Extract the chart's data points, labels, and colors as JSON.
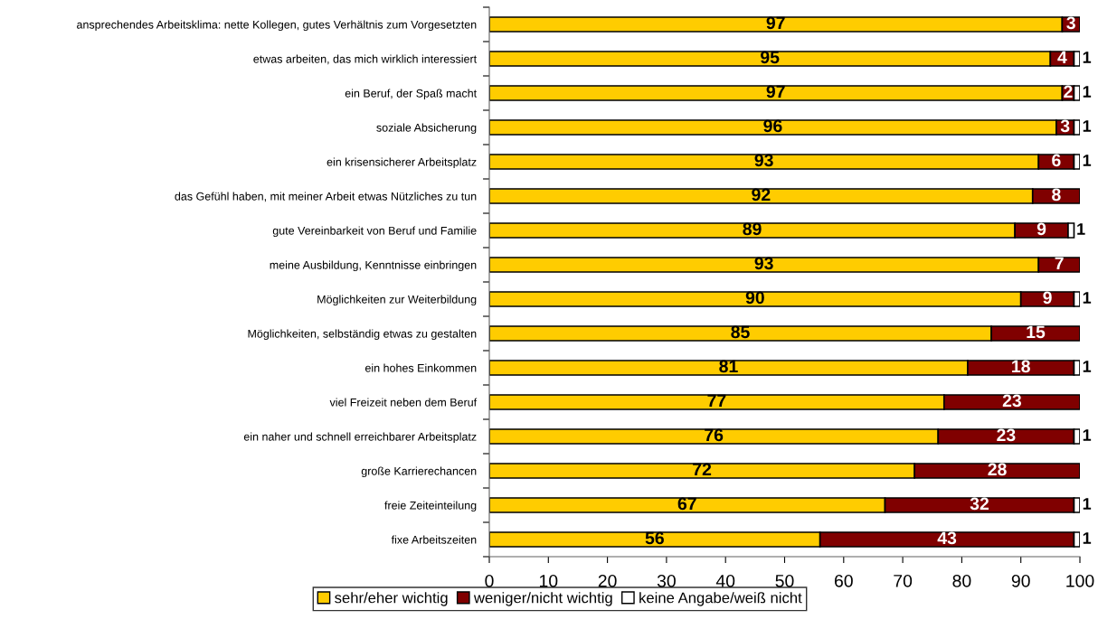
{
  "chart_data": {
    "type": "bar",
    "orientation": "horizontal",
    "stacked": true,
    "categories": [
      "ansprechendes Arbeitsklima: nette Kollegen, gutes Verhältnis zum Vorgesetzten",
      "etwas arbeiten, das mich wirklich interessiert",
      "ein Beruf, der Spaß macht",
      "soziale Absicherung",
      "ein krisensicherer Arbeitsplatz",
      "das Gefühl haben, mit meiner Arbeit etwas Nützliches zu tun",
      "gute Vereinbarkeit von Beruf und Familie",
      "meine Ausbildung, Kenntnisse einbringen",
      "Möglichkeiten zur Weiterbildung",
      "Möglichkeiten, selbständig etwas zu gestalten",
      "ein hohes Einkommen",
      "viel Freizeit neben dem Beruf",
      "ein naher und schnell erreichbarer Arbeitsplatz",
      "große Karrierechancen",
      "freie Zeiteinteilung",
      "fixe Arbeitszeiten"
    ],
    "series": [
      {
        "name": "sehr/eher wichtig",
        "color": "#ffcc00",
        "values": [
          97,
          95,
          97,
          96,
          93,
          92,
          89,
          93,
          90,
          85,
          81,
          77,
          76,
          72,
          67,
          56
        ]
      },
      {
        "name": "weniger/nicht wichtig",
        "color": "#800000",
        "values": [
          3,
          4,
          2,
          3,
          6,
          8,
          9,
          7,
          9,
          15,
          18,
          23,
          23,
          28,
          32,
          43
        ]
      },
      {
        "name": "keine Angabe/weiß nicht",
        "color": "#ffffff",
        "values": [
          null,
          1,
          1,
          1,
          1,
          null,
          1,
          null,
          1,
          null,
          1,
          null,
          1,
          null,
          1,
          1
        ]
      }
    ],
    "xlim": [
      0,
      100
    ],
    "xticks": [
      0,
      10,
      20,
      30,
      40,
      50,
      60,
      70,
      80,
      90,
      100
    ],
    "data_labels": true,
    "legend": "bottom",
    "grid": false
  }
}
